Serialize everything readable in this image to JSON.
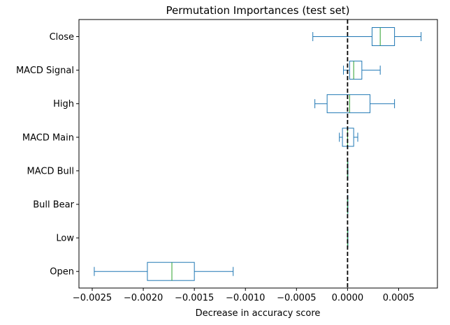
{
  "chart_data": {
    "type": "boxplot",
    "orientation": "horizontal",
    "title": "Permutation Importances (test set)",
    "xlabel": "Decrease in accuracy score",
    "ylabel": "",
    "xlim": [
      -0.00263,
      0.00088
    ],
    "x_ticks": [
      -0.0025,
      -0.002,
      -0.0015,
      -0.001,
      -0.0005,
      0.0,
      0.0005
    ],
    "x_tick_labels": [
      "−0.0025",
      "−0.0020",
      "−0.0015",
      "−0.0010",
      "−0.0005",
      "0.0000",
      "0.0005"
    ],
    "reference_line": {
      "x": 0.0,
      "style": "dashed",
      "color": "#000000"
    },
    "categories": [
      "Close",
      "MACD Signal",
      "High",
      "MACD Main",
      "MACD Bull",
      "Bull Bear",
      "Low",
      "Open"
    ],
    "boxes": [
      {
        "label": "Close",
        "whisker_low": -0.00034,
        "q1": 0.00024,
        "median": 0.00032,
        "q3": 0.00046,
        "whisker_high": 0.00072
      },
      {
        "label": "MACD Signal",
        "whisker_low": -4e-05,
        "q1": 2e-05,
        "median": 6e-05,
        "q3": 0.00014,
        "whisker_high": 0.00032
      },
      {
        "label": "High",
        "whisker_low": -0.00032,
        "q1": -0.0002,
        "median": 2e-05,
        "q3": 0.00022,
        "whisker_high": 0.00046
      },
      {
        "label": "MACD Main",
        "whisker_low": -8e-05,
        "q1": -5e-05,
        "median": 0.0,
        "q3": 6e-05,
        "whisker_high": 0.0001
      },
      {
        "label": "MACD Bull",
        "whisker_low": 0.0,
        "q1": 0.0,
        "median": 0.0,
        "q3": 0.0,
        "whisker_high": 0.0
      },
      {
        "label": "Bull Bear",
        "whisker_low": 0.0,
        "q1": 0.0,
        "median": 0.0,
        "q3": 0.0,
        "whisker_high": 0.0
      },
      {
        "label": "Low",
        "whisker_low": 0.0,
        "q1": 0.0,
        "median": 0.0,
        "q3": 0.0,
        "whisker_high": 0.0
      },
      {
        "label": "Open",
        "whisker_low": -0.00248,
        "q1": -0.00196,
        "median": -0.00172,
        "q3": -0.0015,
        "whisker_high": -0.00112
      }
    ],
    "colors": {
      "box": "#1f77b4",
      "median": "#2ca02c",
      "reference_line": "#000000"
    },
    "grid": false,
    "legend": "none"
  }
}
